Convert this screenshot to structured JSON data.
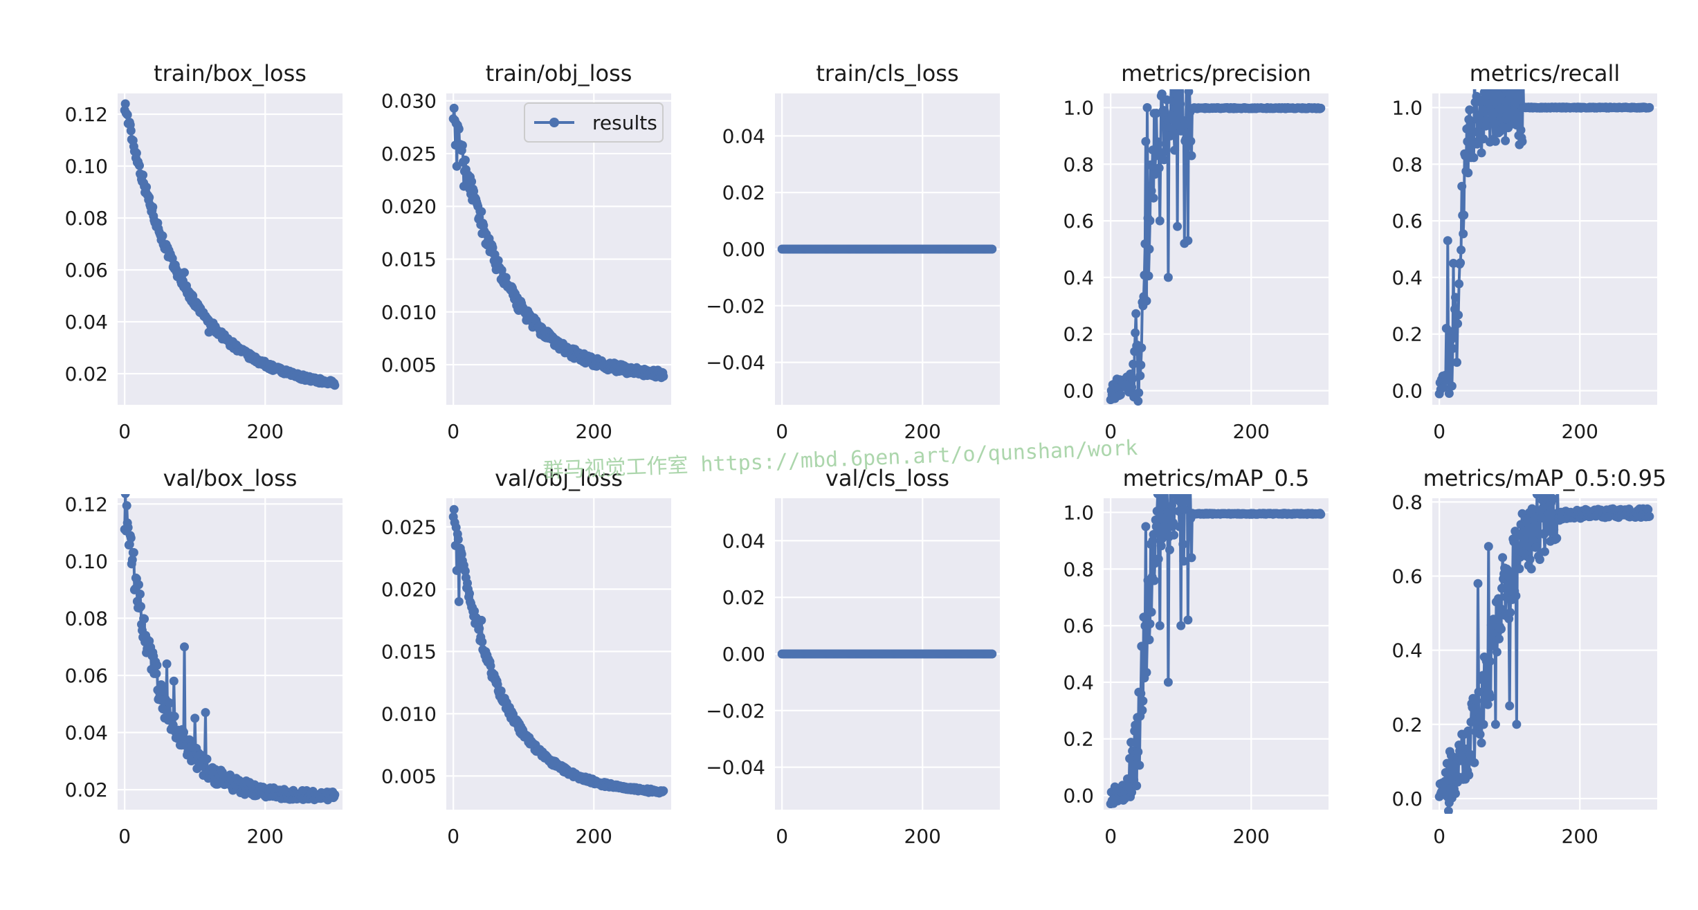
{
  "figure": {
    "watermark": "群马视觉工作室 https://mbd.6pen.art/o/qunshan/work",
    "legend_label": "results",
    "colors": {
      "series": "#4c72b0",
      "panel": "#eaeaf2",
      "grid": "#ffffff",
      "text": "#1a1a1a"
    }
  },
  "chart_data": [
    {
      "title": "train/box_loss",
      "type": "line",
      "xlim": [
        -10,
        310
      ],
      "ylim": [
        0.008,
        0.128
      ],
      "xticks": [
        0,
        200
      ],
      "yticks": [
        0.02,
        0.04,
        0.06,
        0.08,
        0.1,
        0.12
      ],
      "ytick_labels": [
        "0.02",
        "0.04",
        "0.06",
        "0.08",
        "0.10",
        "0.12"
      ],
      "legend": false,
      "series_name": "results",
      "shape": "decay",
      "start": 0.124,
      "end": 0.013,
      "rate": 85,
      "noise": 0.0025,
      "noise_end": 0.0008,
      "spikes": [
        [
          85,
          0.059
        ],
        [
          97,
          0.05
        ],
        [
          120,
          0.036
        ]
      ]
    },
    {
      "title": "train/obj_loss",
      "type": "line",
      "xlim": [
        -10,
        310
      ],
      "ylim": [
        0.0012,
        0.0307
      ],
      "xticks": [
        0,
        200
      ],
      "yticks": [
        0.005,
        0.01,
        0.015,
        0.02,
        0.025,
        0.03
      ],
      "ytick_labels": [
        "0.005",
        "0.010",
        "0.015",
        "0.020",
        "0.025",
        "0.030"
      ],
      "legend": true,
      "series_name": "results",
      "shape": "decay",
      "start": 0.0293,
      "end": 0.0037,
      "rate": 72,
      "noise": 0.001,
      "noise_end": 0.0003,
      "spikes": [
        [
          1,
          0.0293
        ],
        [
          3,
          0.0258
        ],
        [
          5,
          0.0238
        ],
        [
          15,
          0.0219
        ],
        [
          40,
          0.0195
        ]
      ]
    },
    {
      "title": "train/cls_loss",
      "type": "line",
      "xlim": [
        -10,
        310
      ],
      "ylim": [
        -0.055,
        0.055
      ],
      "xticks": [
        0,
        200
      ],
      "yticks": [
        -0.04,
        -0.02,
        0.0,
        0.02,
        0.04
      ],
      "ytick_labels": [
        "−0.04",
        "−0.02",
        "0.00",
        "0.02",
        "0.04"
      ],
      "legend": false,
      "series_name": "results",
      "shape": "flat",
      "value": 0.0,
      "spikes": []
    },
    {
      "title": "metrics/precision",
      "type": "line",
      "xlim": [
        -10,
        310
      ],
      "ylim": [
        -0.05,
        1.05
      ],
      "xticks": [
        0,
        200
      ],
      "yticks": [
        0.0,
        0.2,
        0.4,
        0.6,
        0.8,
        1.0
      ],
      "ytick_labels": [
        "0.0",
        "0.2",
        "0.4",
        "0.6",
        "0.8",
        "1.0"
      ],
      "legend": false,
      "series_name": "results",
      "shape": "rise",
      "start": 0.003,
      "end": 0.998,
      "mid": 52,
      "width": 7,
      "noise": 0.18,
      "stable_after": 115,
      "spikes": [
        [
          50,
          0.88
        ],
        [
          52,
          1.0
        ],
        [
          55,
          0.5
        ],
        [
          60,
          0.85
        ],
        [
          65,
          0.98
        ],
        [
          70,
          0.6
        ],
        [
          82,
          0.4
        ],
        [
          85,
          0.9
        ],
        [
          95,
          0.58
        ],
        [
          105,
          0.52
        ],
        [
          110,
          0.53
        ],
        [
          115,
          0.83
        ]
      ]
    },
    {
      "title": "metrics/recall",
      "type": "line",
      "xlim": [
        -10,
        310
      ],
      "ylim": [
        -0.05,
        1.05
      ],
      "xticks": [
        0,
        200
      ],
      "yticks": [
        0.0,
        0.2,
        0.4,
        0.6,
        0.8,
        1.0
      ],
      "ytick_labels": [
        "0.0",
        "0.2",
        "0.4",
        "0.6",
        "0.8",
        "1.0"
      ],
      "legend": false,
      "series_name": "results",
      "shape": "rise",
      "start": 0.01,
      "end": 1.0,
      "mid": 30,
      "width": 6,
      "noise": 0.14,
      "stable_after": 120,
      "spikes": [
        [
          10,
          0.22
        ],
        [
          12,
          0.53
        ],
        [
          20,
          0.45
        ],
        [
          25,
          0.1
        ],
        [
          35,
          0.62
        ],
        [
          40,
          0.88
        ],
        [
          60,
          0.84
        ],
        [
          90,
          0.93
        ],
        [
          118,
          0.88
        ]
      ]
    },
    {
      "title": "val/box_loss",
      "type": "line",
      "xlim": [
        -10,
        310
      ],
      "ylim": [
        0.013,
        0.122
      ],
      "xticks": [
        0,
        200
      ],
      "yticks": [
        0.02,
        0.04,
        0.06,
        0.08,
        0.1,
        0.12
      ],
      "ytick_labels": [
        "0.02",
        "0.04",
        "0.06",
        "0.08",
        "0.10",
        "0.12"
      ],
      "legend": false,
      "series_name": "results",
      "shape": "decay",
      "start": 0.119,
      "end": 0.0175,
      "rate": 50,
      "noise": 0.008,
      "noise_end": 0.0008,
      "spikes": [
        [
          40,
          0.068
        ],
        [
          60,
          0.064
        ],
        [
          70,
          0.058
        ],
        [
          85,
          0.07
        ],
        [
          100,
          0.045
        ],
        [
          115,
          0.047
        ],
        [
          120,
          0.026
        ]
      ]
    },
    {
      "title": "val/obj_loss",
      "type": "line",
      "xlim": [
        -10,
        310
      ],
      "ylim": [
        0.0023,
        0.0273
      ],
      "xticks": [
        0,
        200
      ],
      "yticks": [
        0.005,
        0.01,
        0.015,
        0.02,
        0.025
      ],
      "ytick_labels": [
        "0.005",
        "0.010",
        "0.015",
        "0.020",
        "0.025"
      ],
      "legend": false,
      "series_name": "results",
      "shape": "decay",
      "start": 0.0264,
      "end": 0.0035,
      "rate": 65,
      "noise": 0.0006,
      "noise_end": 0.0001,
      "spikes": [
        [
          1,
          0.0264
        ],
        [
          3,
          0.0235
        ],
        [
          5,
          0.0215
        ],
        [
          8,
          0.019
        ],
        [
          40,
          0.0175
        ]
      ]
    },
    {
      "title": "val/cls_loss",
      "type": "line",
      "xlim": [
        -10,
        310
      ],
      "ylim": [
        -0.055,
        0.055
      ],
      "xticks": [
        0,
        200
      ],
      "yticks": [
        -0.04,
        -0.02,
        0.0,
        0.02,
        0.04
      ],
      "ytick_labels": [
        "−0.04",
        "−0.02",
        "0.00",
        "0.02",
        "0.04"
      ],
      "legend": false,
      "series_name": "results",
      "shape": "flat",
      "value": 0.0,
      "spikes": []
    },
    {
      "title": "metrics/mAP_0.5",
      "type": "line",
      "xlim": [
        -10,
        310
      ],
      "ylim": [
        -0.05,
        1.05
      ],
      "xticks": [
        0,
        200
      ],
      "yticks": [
        0.0,
        0.2,
        0.4,
        0.6,
        0.8,
        1.0
      ],
      "ytick_labels": [
        "0.0",
        "0.2",
        "0.4",
        "0.6",
        "0.8",
        "1.0"
      ],
      "legend": false,
      "series_name": "results",
      "shape": "rise",
      "start": 0.003,
      "end": 0.995,
      "mid": 48,
      "width": 7,
      "noise": 0.17,
      "stable_after": 115,
      "spikes": [
        [
          50,
          0.95
        ],
        [
          55,
          0.55
        ],
        [
          60,
          0.9
        ],
        [
          70,
          0.6
        ],
        [
          82,
          0.4
        ],
        [
          90,
          0.92
        ],
        [
          100,
          0.6
        ],
        [
          110,
          0.62
        ],
        [
          115,
          0.84
        ]
      ]
    },
    {
      "title": "metrics/mAP_0.5:0.95",
      "type": "line",
      "xlim": [
        -10,
        310
      ],
      "ylim": [
        -0.03,
        0.81
      ],
      "xticks": [
        0,
        200
      ],
      "yticks": [
        0.0,
        0.2,
        0.4,
        0.6,
        0.8
      ],
      "ytick_labels": [
        "0.0",
        "0.2",
        "0.4",
        "0.6",
        "0.8"
      ],
      "legend": false,
      "series_name": "results",
      "shape": "rise",
      "start": 0.0,
      "end": 0.77,
      "mid": 75,
      "width": 22,
      "noise": 0.1,
      "stable_after": 170,
      "spikes": [
        [
          55,
          0.58
        ],
        [
          60,
          0.15
        ],
        [
          70,
          0.68
        ],
        [
          80,
          0.2
        ],
        [
          90,
          0.65
        ],
        [
          100,
          0.25
        ],
        [
          105,
          0.7
        ],
        [
          110,
          0.2
        ],
        [
          120,
          0.7
        ],
        [
          140,
          0.76
        ],
        [
          160,
          0.72
        ],
        [
          200,
          0.77
        ]
      ]
    }
  ]
}
